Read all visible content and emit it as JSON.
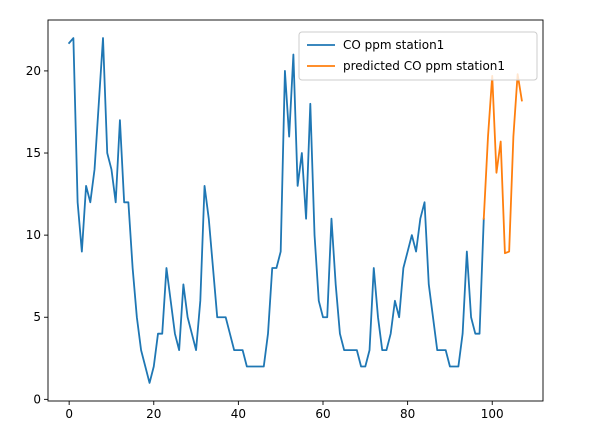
{
  "chart_data": {
    "type": "line",
    "title": "",
    "xlabel": "",
    "ylabel": "",
    "xlim": [
      -5,
      112
    ],
    "ylim": [
      -0.1,
      23.1
    ],
    "xticks": [
      0,
      20,
      40,
      60,
      80,
      100
    ],
    "yticks": [
      0,
      5,
      10,
      15,
      20
    ],
    "grid": false,
    "legend_position": "top-right",
    "series": [
      {
        "name": "CO ppm station1",
        "color": "#1f77b4",
        "x": [
          0,
          1,
          2,
          3,
          4,
          5,
          6,
          7,
          8,
          9,
          10,
          11,
          12,
          13,
          14,
          15,
          16,
          17,
          18,
          19,
          20,
          21,
          22,
          23,
          24,
          25,
          26,
          27,
          28,
          29,
          30,
          31,
          32,
          33,
          34,
          35,
          36,
          37,
          38,
          39,
          40,
          41,
          42,
          43,
          44,
          45,
          46,
          47,
          48,
          49,
          50,
          51,
          52,
          53,
          54,
          55,
          56,
          57,
          58,
          59,
          60,
          61,
          62,
          63,
          64,
          65,
          66,
          67,
          68,
          69,
          70,
          71,
          72,
          73,
          74,
          75,
          76,
          77,
          78,
          79,
          80,
          81,
          82,
          83,
          84,
          85,
          86,
          87,
          88,
          89,
          90,
          91,
          92,
          93,
          94,
          95,
          96,
          97,
          98
        ],
        "y": [
          21.7,
          22,
          12,
          9,
          13,
          12,
          14,
          18,
          22,
          15,
          14,
          12,
          17,
          12,
          12,
          8,
          5,
          3,
          2,
          1,
          2,
          4,
          4,
          8,
          6,
          4,
          3,
          7,
          5,
          4,
          3,
          6,
          13,
          11,
          8,
          5,
          5,
          5,
          4,
          3,
          3,
          3,
          2,
          2,
          2,
          2,
          2,
          4,
          8,
          8,
          9,
          20,
          16,
          21,
          13,
          15,
          11,
          18,
          10,
          6,
          5,
          5,
          11,
          7,
          4,
          3,
          3,
          3,
          3,
          2,
          2,
          3,
          8,
          5,
          3,
          3,
          4,
          6,
          5,
          8,
          9,
          10,
          9,
          11,
          12,
          7,
          5,
          3,
          3,
          3,
          2,
          2,
          2,
          4,
          9,
          5,
          4,
          4,
          11
        ]
      },
      {
        "name": "predicted CO ppm station1",
        "color": "#ff7f0e",
        "x": [
          98,
          99,
          100,
          101,
          102,
          103,
          104,
          105,
          106,
          107
        ],
        "y": [
          11,
          16,
          19.7,
          13.8,
          15.7,
          8.9,
          9,
          16,
          19.8,
          18.2
        ]
      }
    ]
  }
}
